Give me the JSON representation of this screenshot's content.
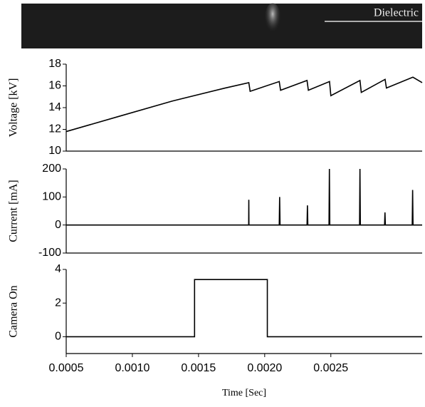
{
  "image": {
    "label": "Dielectric"
  },
  "chart_data": [
    {
      "type": "line",
      "y_label": "Voltage [kV]",
      "color": "#000000",
      "x": [
        0.0005,
        0.0009,
        0.0013,
        0.0017,
        0.00188,
        0.00189,
        0.00211,
        0.00212,
        0.00232,
        0.00233,
        0.00249,
        0.0025,
        0.00272,
        0.00273,
        0.00291,
        0.00292,
        0.00312,
        0.00319
      ],
      "values": [
        11.8,
        13.2,
        14.6,
        15.8,
        16.3,
        15.5,
        16.4,
        15.6,
        16.5,
        15.6,
        16.4,
        15.1,
        16.5,
        15.4,
        16.6,
        15.8,
        16.8,
        16.3
      ],
      "xlim": [
        0.0005,
        0.00319
      ],
      "ylim": [
        10,
        18
      ],
      "yticks": [
        10,
        12,
        14,
        16,
        18
      ]
    },
    {
      "type": "line",
      "y_label": "Current [mA]",
      "color": "#000000",
      "x": [
        0.0005,
        0.001879,
        0.00188,
        0.001881,
        0.00211,
        0.002113,
        0.002116,
        0.00232,
        0.002323,
        0.002326,
        0.002486,
        0.002489,
        0.002492,
        0.002717,
        0.00272,
        0.002723,
        0.002906,
        0.002909,
        0.002912,
        0.003115,
        0.003118,
        0.003121,
        0.00319
      ],
      "values": [
        0,
        0,
        90,
        0,
        0,
        100,
        0,
        0,
        70,
        0,
        0,
        200,
        0,
        0,
        200,
        0,
        0,
        45,
        0,
        0,
        125,
        0,
        0
      ],
      "xlim": [
        0.0005,
        0.00319
      ],
      "ylim": [
        -100,
        200
      ],
      "yticks": [
        -100,
        0,
        100,
        200
      ]
    },
    {
      "type": "line",
      "y_label": "Camera On",
      "x_label": "Time [Sec]",
      "color": "#000000",
      "x": [
        0.0005,
        0.00147,
        0.00147,
        0.00202,
        0.00202,
        0.00319
      ],
      "values": [
        0,
        0,
        3.4,
        3.4,
        0,
        0
      ],
      "xlim": [
        0.0005,
        0.00319
      ],
      "ylim": [
        -1,
        4
      ],
      "yticks": [
        0,
        2,
        4
      ],
      "xticks": [
        0.0005,
        {
          "value": 0.001,
          "label": "0.0010"
        },
        0.0015,
        {
          "value": 0.002,
          "label": "0.0020"
        },
        0.0025
      ]
    }
  ]
}
